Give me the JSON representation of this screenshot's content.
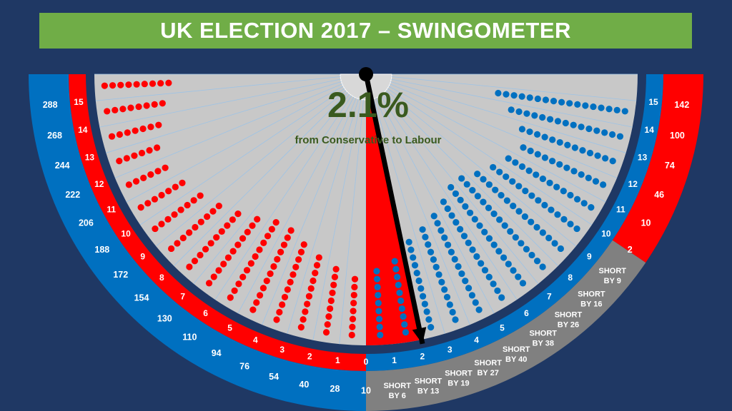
{
  "title": "UK ELECTION 2017 – SWINGOMETER",
  "swing": {
    "value": "2.1%",
    "caption": "from Conservative to Labour",
    "needle_swing_pct": 2.1
  },
  "colors": {
    "background": "#1f3864",
    "title_bar": "#70ad47",
    "conservative": "#0070c0",
    "labour": "#ff0000",
    "shortfall": "#808080",
    "dial_face": "#c8c8c8",
    "swing_text": "#3a5a1f"
  },
  "chart_data": {
    "type": "swingometer",
    "title": "UK ELECTION 2017 – SWINGOMETER",
    "swing_pct": 2.1,
    "swing_direction": "from Conservative to Labour",
    "swing_ticks_labour_gains": [
      "0",
      "1",
      "2",
      "3",
      "4",
      "5",
      "6",
      "7",
      "8",
      "9",
      "10",
      "11",
      "12",
      "13",
      "14",
      "15"
    ],
    "labour_majority_labels_right": [
      "10",
      "28",
      "40",
      "54",
      "76",
      "94",
      "110",
      "130",
      "154",
      "172",
      "188",
      "206",
      "222",
      "244",
      "268",
      "288"
    ],
    "swing_ticks_conservative_gains": [
      "1",
      "2",
      "3",
      "4",
      "5",
      "6",
      "7",
      "8",
      "9",
      "10",
      "11",
      "12",
      "13",
      "14",
      "15"
    ],
    "conservative_shortfall_labels": [
      "SHORT BY 6",
      "SHORT BY 13",
      "SHORT BY 19",
      "SHORT BY 27",
      "SHORT BY 40",
      "SHORT BY 38",
      "SHORT BY 26",
      "SHORT BY 16",
      "SHORT BY 9"
    ],
    "conservative_majority_labels_left": [
      "2",
      "10",
      "46",
      "74",
      "100",
      "142"
    ],
    "seats_per_band_conservative_side": [
      9,
      10,
      12,
      13,
      14,
      15,
      16,
      16,
      15,
      14,
      13,
      12,
      13,
      15,
      17
    ],
    "seats_per_band_labour_side": [
      8,
      9,
      10,
      11,
      12,
      12,
      11,
      10,
      9,
      8,
      7,
      6,
      6,
      7,
      8,
      9
    ]
  }
}
